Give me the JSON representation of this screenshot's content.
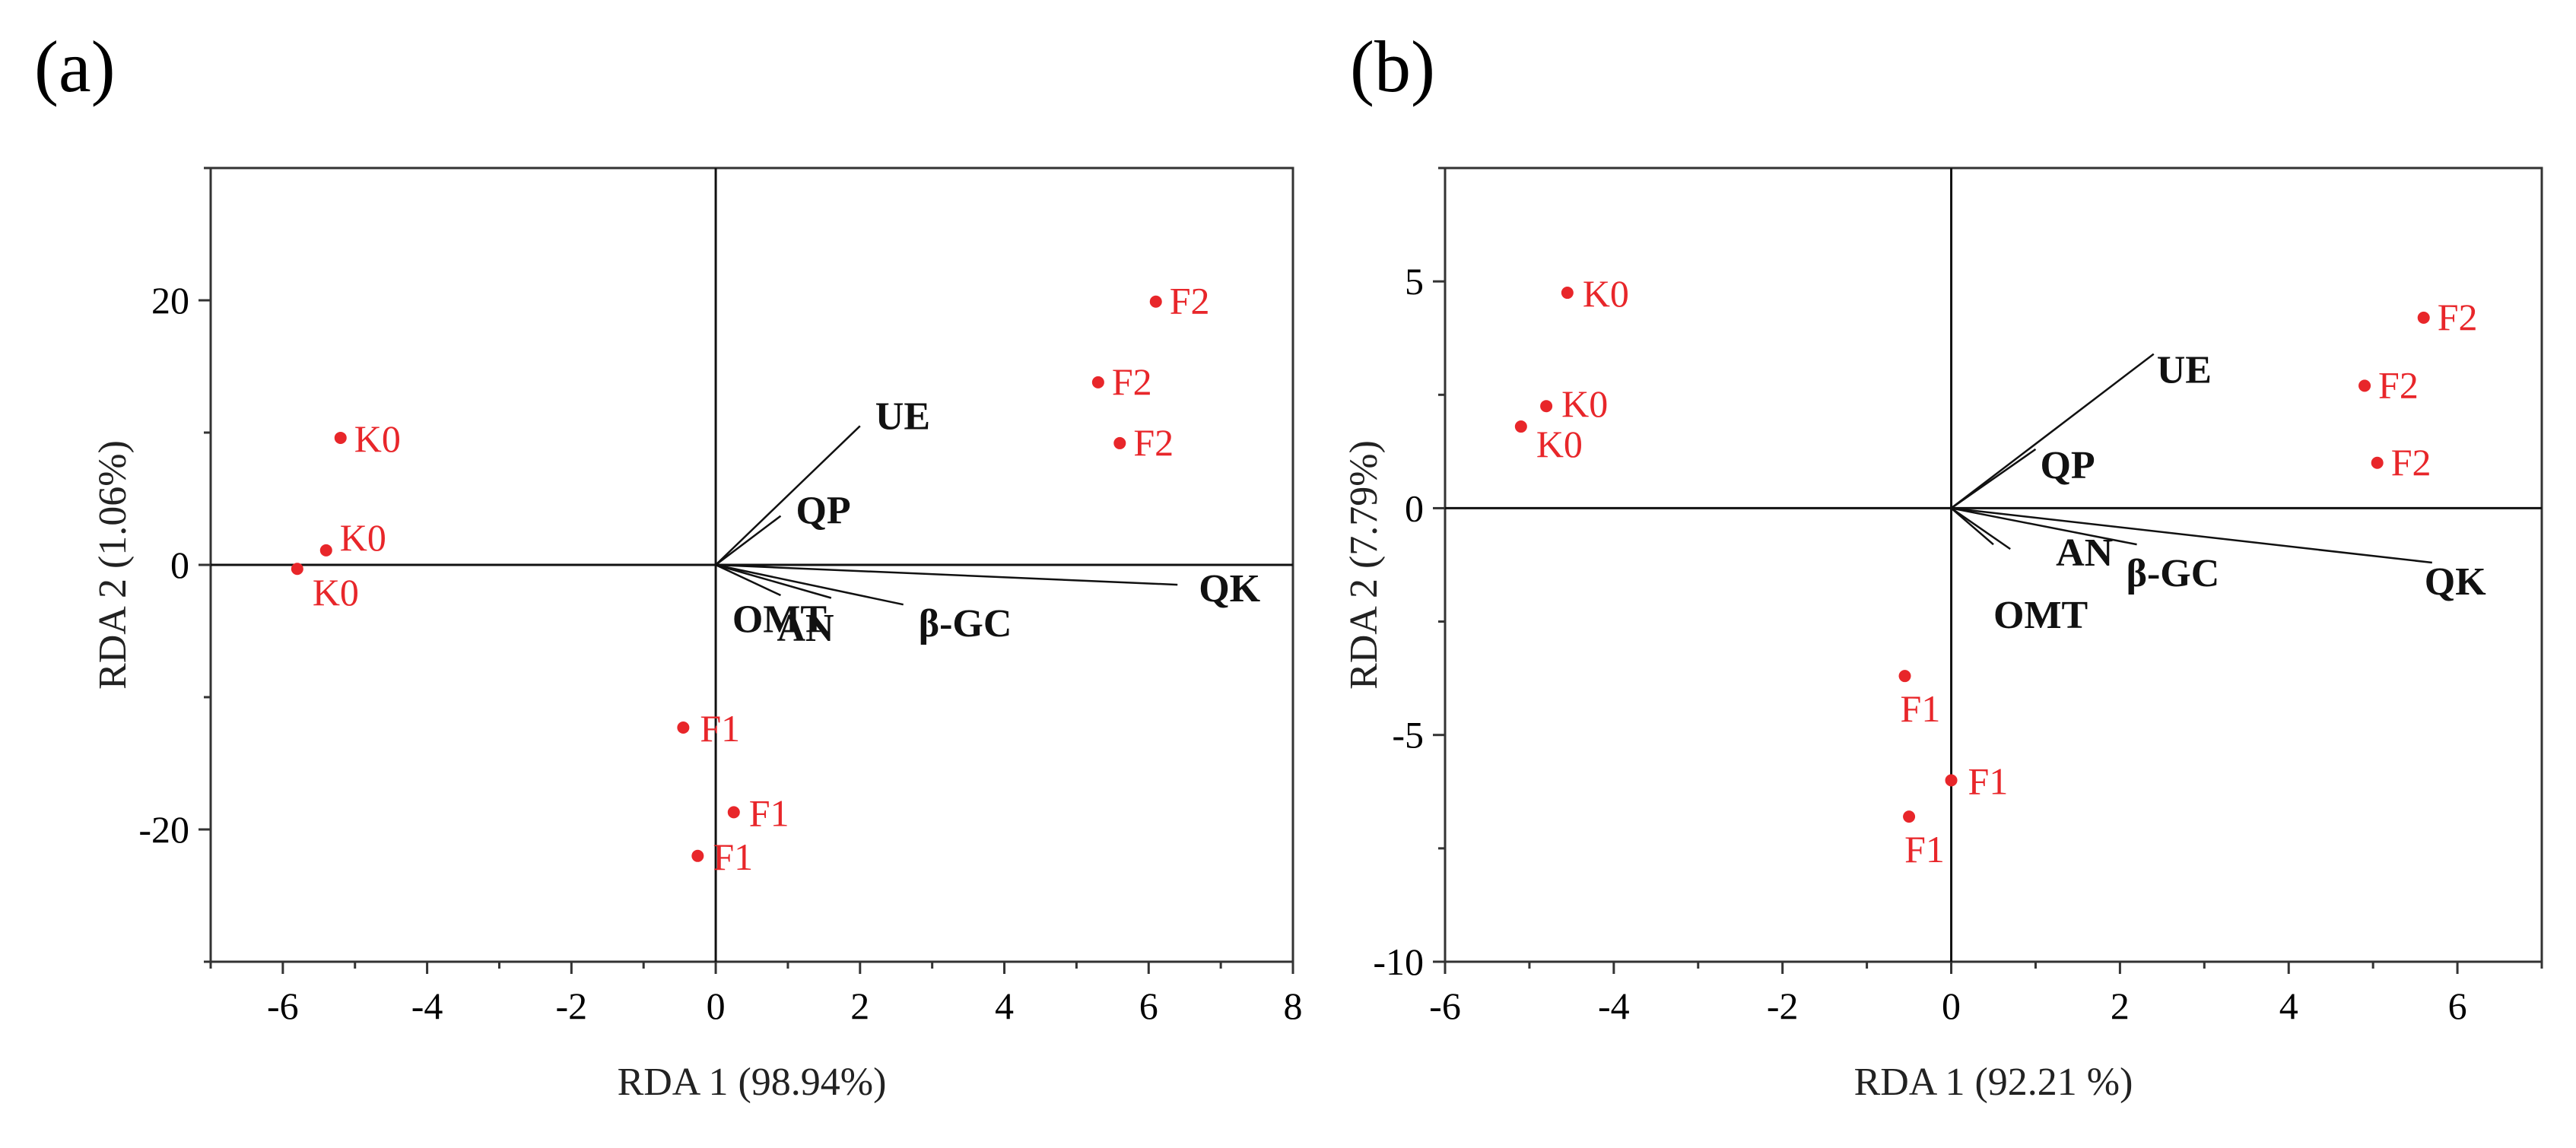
{
  "panels": [
    {
      "label": "(a)",
      "chart_data": {
        "type": "scatter",
        "title": "",
        "xlabel": "RDA 1 (98.94%)",
        "ylabel": "RDA 2 (1.06%)",
        "xlim": [
          -7,
          8
        ],
        "ylim": [
          -30,
          30
        ],
        "xticks": [
          -6,
          -4,
          -2,
          0,
          2,
          4,
          6,
          8
        ],
        "xtick_labels": [
          "-6",
          "-4",
          "-2",
          "0",
          "2",
          "4",
          "6",
          "8"
        ],
        "yticks": [
          -20,
          0,
          20
        ],
        "ytick_labels": [
          "-20",
          "0",
          "20"
        ],
        "points": [
          {
            "label": "K0",
            "x": -5.2,
            "y": 9.6
          },
          {
            "label": "K0",
            "x": -5.4,
            "y": 1.1
          },
          {
            "label": "K0",
            "x": -5.8,
            "y": -0.3
          },
          {
            "label": "F2",
            "x": 6.1,
            "y": 19.9
          },
          {
            "label": "F2",
            "x": 5.3,
            "y": 13.8
          },
          {
            "label": "F2",
            "x": 5.6,
            "y": 9.2
          },
          {
            "label": "F1",
            "x": -0.45,
            "y": -12.3
          },
          {
            "label": "F1",
            "x": 0.25,
            "y": -18.7
          },
          {
            "label": "F1",
            "x": -0.25,
            "y": -22.0
          }
        ],
        "vectors": [
          {
            "label": "UE",
            "x": 2.0,
            "y": 10.5
          },
          {
            "label": "QP",
            "x": 0.9,
            "y": 3.7
          },
          {
            "label": "AN",
            "x": 0.9,
            "y": -2.3
          },
          {
            "label": "OMT",
            "x": 1.6,
            "y": -2.5
          },
          {
            "label": "β-GC",
            "x": 2.6,
            "y": -3.0
          },
          {
            "label": "QK",
            "x": 6.4,
            "y": -1.5
          }
        ]
      }
    },
    {
      "label": "(b)",
      "chart_data": {
        "type": "scatter",
        "title": "",
        "xlabel": "RDA 1 (92.21 %)",
        "ylabel": "RDA 2 (7.79%)",
        "xlim": [
          -6,
          7
        ],
        "ylim": [
          -10,
          7.5
        ],
        "xticks": [
          -6,
          -4,
          -2,
          0,
          2,
          4,
          6
        ],
        "xtick_labels": [
          "-6",
          "-4",
          "-2",
          "0",
          "2",
          "4",
          "6"
        ],
        "yticks": [
          -10,
          -5,
          0,
          5
        ],
        "ytick_labels": [
          "-10",
          "-5",
          "0",
          "5"
        ],
        "points": [
          {
            "label": "K0",
            "x": -4.55,
            "y": 4.75
          },
          {
            "label": "K0",
            "x": -4.8,
            "y": 2.25
          },
          {
            "label": "K0",
            "x": -5.1,
            "y": 1.8
          },
          {
            "label": "F2",
            "x": 5.6,
            "y": 4.2
          },
          {
            "label": "F2",
            "x": 4.9,
            "y": 2.7
          },
          {
            "label": "F2",
            "x": 5.05,
            "y": 1.0
          },
          {
            "label": "F1",
            "x": -0.55,
            "y": -3.7
          },
          {
            "label": "F1",
            "x": 0.0,
            "y": -6.0
          },
          {
            "label": "F1",
            "x": -0.5,
            "y": -6.8
          }
        ],
        "vectors": [
          {
            "label": "UE",
            "x": 2.4,
            "y": 3.4
          },
          {
            "label": "QP",
            "x": 1.0,
            "y": 1.3
          },
          {
            "label": "AN",
            "x": 0.7,
            "y": -0.9
          },
          {
            "label": "OMT",
            "x": 0.5,
            "y": -0.8
          },
          {
            "label": "β-GC",
            "x": 2.2,
            "y": -0.8
          },
          {
            "label": "QK",
            "x": 5.7,
            "y": -1.2
          }
        ]
      }
    }
  ]
}
